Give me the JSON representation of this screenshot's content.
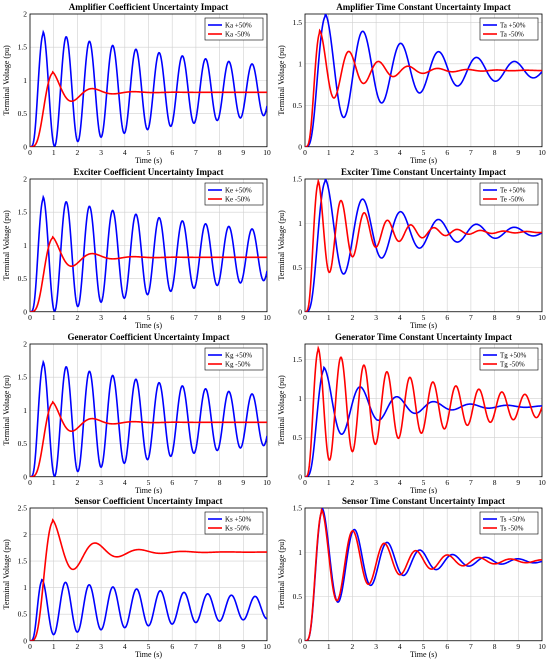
{
  "chart_data": [
    {
      "type": "line",
      "title": "Amplifier Coefficient Uncertainty Impact",
      "xlabel": "Time (s)",
      "ylabel": "Terminal Voltage (pu)",
      "xlim": [
        0,
        10
      ],
      "ylim": [
        0,
        2
      ],
      "yticks": [
        0,
        0.5,
        1,
        1.5,
        2
      ],
      "xticks": [
        0,
        1,
        2,
        3,
        4,
        5,
        6,
        7,
        8,
        9,
        10
      ],
      "grid": true,
      "legend_position": "top-right",
      "series": [
        {
          "name": "Ka +50%",
          "color": "#0000ff",
          "final": 0.85,
          "peak": 1.73,
          "t_peak": 0.55,
          "period": 0.98,
          "decay": 0.09
        },
        {
          "name": "Ka -50%",
          "color": "#ff0000",
          "final": 0.82,
          "peak": 1.13,
          "t_peak": 0.95,
          "period": 1.75,
          "decay": 1.0
        }
      ]
    },
    {
      "type": "line",
      "title": "Amplifier Time Constant Uncertainty Impact",
      "xlabel": "Time (s)",
      "ylabel": "Terminal Voltage (pu)",
      "xlim": [
        0,
        10
      ],
      "ylim": [
        0,
        1.6
      ],
      "yticks": [
        0,
        0.5,
        1,
        1.5
      ],
      "xticks": [
        0,
        1,
        2,
        3,
        4,
        5,
        6,
        7,
        8,
        9,
        10
      ],
      "grid": true,
      "legend_position": "top-right",
      "series": [
        {
          "name": "Ta +50%",
          "color": "#0000ff",
          "final": 0.92,
          "peak": 1.6,
          "t_peak": 0.85,
          "period": 1.6,
          "decay": 0.23
        },
        {
          "name": "Ta -50%",
          "color": "#ff0000",
          "final": 0.92,
          "peak": 1.4,
          "t_peak": 0.62,
          "period": 1.25,
          "decay": 0.6
        }
      ]
    },
    {
      "type": "line",
      "title": "Exciter Coefficient Uncertainty Impact",
      "xlabel": "Time (s)",
      "ylabel": "Terminal Voltage (pu)",
      "xlim": [
        0,
        10
      ],
      "ylim": [
        0,
        2
      ],
      "yticks": [
        0,
        0.5,
        1,
        1.5,
        2
      ],
      "xticks": [
        0,
        1,
        2,
        3,
        4,
        5,
        6,
        7,
        8,
        9,
        10
      ],
      "grid": true,
      "legend_position": "top-right",
      "series": [
        {
          "name": "Ke +50%",
          "color": "#0000ff",
          "final": 0.85,
          "peak": 1.73,
          "t_peak": 0.55,
          "period": 0.98,
          "decay": 0.09
        },
        {
          "name": "Ke -50%",
          "color": "#ff0000",
          "final": 0.82,
          "peak": 1.13,
          "t_peak": 0.95,
          "period": 1.75,
          "decay": 1.0
        }
      ]
    },
    {
      "type": "line",
      "title": "Exciter Time Constant Uncertainty Impact",
      "xlabel": "Time (s)",
      "ylabel": "Terminal Voltage (pu)",
      "xlim": [
        0,
        10
      ],
      "ylim": [
        0,
        1.5
      ],
      "yticks": [
        0,
        0.5,
        1,
        1.5
      ],
      "xticks": [
        0,
        1,
        2,
        3,
        4,
        5,
        6,
        7,
        8,
        9,
        10
      ],
      "grid": true,
      "legend_position": "top-right",
      "series": [
        {
          "name": "Te +50%",
          "color": "#0000ff",
          "final": 0.9,
          "peak": 1.5,
          "t_peak": 0.85,
          "period": 1.6,
          "decay": 0.3
        },
        {
          "name": "Te -50%",
          "color": "#ff0000",
          "final": 0.9,
          "peak": 1.48,
          "t_peak": 0.55,
          "period": 0.98,
          "decay": 0.5
        }
      ]
    },
    {
      "type": "line",
      "title": "Generator Coefficient Uncertainty Impact",
      "xlabel": "Time (s)",
      "ylabel": "Terminal Voltage (pu)",
      "xlim": [
        0,
        10
      ],
      "ylim": [
        0,
        2
      ],
      "yticks": [
        0,
        0.5,
        1,
        1.5,
        2
      ],
      "xticks": [
        0,
        1,
        2,
        3,
        4,
        5,
        6,
        7,
        8,
        9,
        10
      ],
      "grid": true,
      "legend_position": "top-right",
      "series": [
        {
          "name": "Kg +50%",
          "color": "#0000ff",
          "final": 0.85,
          "peak": 1.73,
          "t_peak": 0.55,
          "period": 0.98,
          "decay": 0.09
        },
        {
          "name": "Kg -50%",
          "color": "#ff0000",
          "final": 0.82,
          "peak": 1.13,
          "t_peak": 0.95,
          "period": 1.75,
          "decay": 1.0
        }
      ]
    },
    {
      "type": "line",
      "title": "Generator Time Constant Uncertainty Impact",
      "xlabel": "Time (s)",
      "ylabel": "Terminal Voltage (pu)",
      "xlim": [
        0,
        10
      ],
      "ylim": [
        0,
        1.7
      ],
      "yticks": [
        0,
        0.5,
        1,
        1.5
      ],
      "xticks": [
        0,
        1,
        2,
        3,
        4,
        5,
        6,
        7,
        8,
        9,
        10
      ],
      "grid": true,
      "legend_position": "top-right",
      "series": [
        {
          "name": "Tg +50%",
          "color": "#0000ff",
          "final": 0.9,
          "peak": 1.4,
          "t_peak": 0.8,
          "period": 1.55,
          "decay": 0.45
        },
        {
          "name": "Tg -50%",
          "color": "#ff0000",
          "final": 0.9,
          "peak": 1.65,
          "t_peak": 0.55,
          "period": 0.97,
          "decay": 0.18
        }
      ]
    },
    {
      "type": "line",
      "title": "Sensor Coefficient Uncertainty Impact",
      "xlabel": "Time (s)",
      "ylabel": "Terminal Voltage (pu)",
      "xlim": [
        0,
        10
      ],
      "ylim": [
        0,
        2.5
      ],
      "yticks": [
        0,
        0.5,
        1,
        1.5,
        2,
        2.5
      ],
      "xticks": [
        0,
        1,
        2,
        3,
        4,
        5,
        6,
        7,
        8,
        9,
        10
      ],
      "grid": true,
      "legend_position": "top-right",
      "series": [
        {
          "name": "Ks +50%",
          "color": "#0000ff",
          "final": 0.62,
          "peak": 1.15,
          "t_peak": 0.5,
          "period": 1.0,
          "decay": 0.1
        },
        {
          "name": "Ks -50%",
          "color": "#ff0000",
          "final": 1.67,
          "peak": 2.28,
          "t_peak": 0.95,
          "period": 1.85,
          "decay": 0.7
        }
      ]
    },
    {
      "type": "line",
      "title": "Sensor Time Constant Uncertainty Impact",
      "xlabel": "Time (s)",
      "ylabel": "Terminal Voltage (pu)",
      "xlim": [
        0,
        10
      ],
      "ylim": [
        0,
        1.5
      ],
      "yticks": [
        0,
        0.5,
        1,
        1.5
      ],
      "xticks": [
        0,
        1,
        2,
        3,
        4,
        5,
        6,
        7,
        8,
        9,
        10
      ],
      "grid": true,
      "legend_position": "top-right",
      "series": [
        {
          "name": "Ts +50%",
          "color": "#0000ff",
          "final": 0.9,
          "peak": 1.5,
          "t_peak": 0.72,
          "period": 1.38,
          "decay": 0.38
        },
        {
          "name": "Ts -50%",
          "color": "#ff0000",
          "final": 0.9,
          "peak": 1.48,
          "t_peak": 0.7,
          "period": 1.33,
          "decay": 0.4
        }
      ]
    }
  ]
}
